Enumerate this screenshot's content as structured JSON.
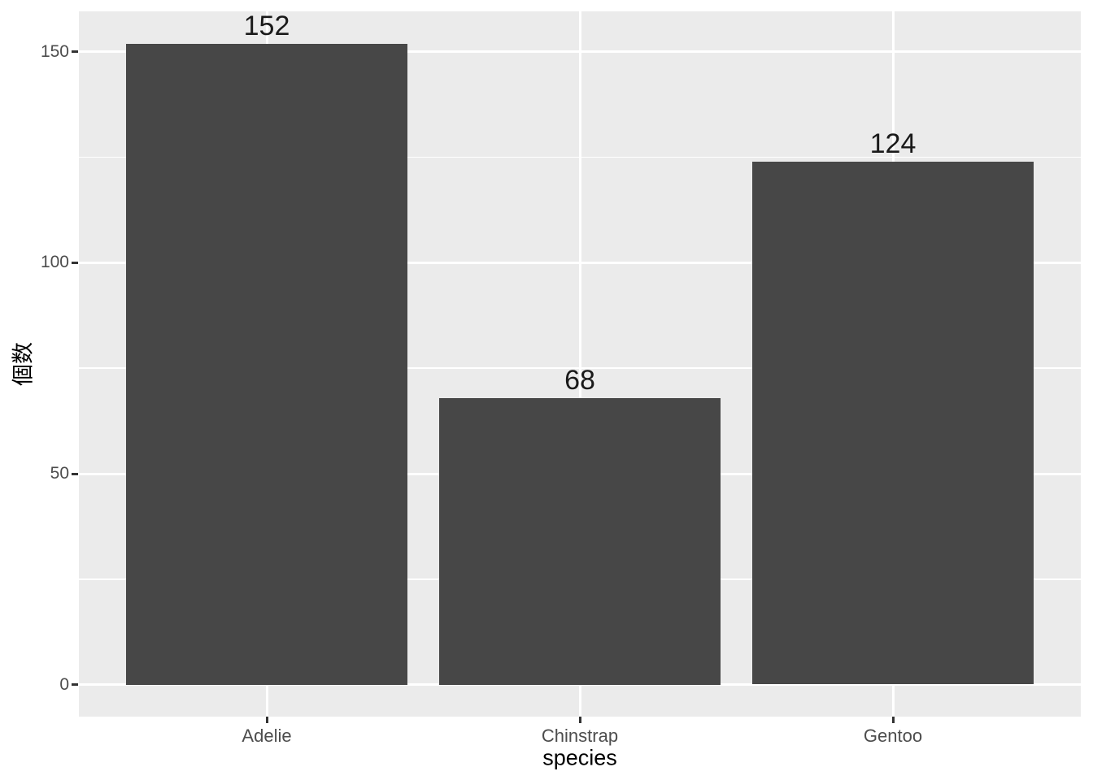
{
  "chart_data": {
    "type": "bar",
    "title": "",
    "categories": [
      "Adelie",
      "Chinstrap",
      "Gentoo"
    ],
    "values": [
      152,
      68,
      124
    ],
    "bar_labels": [
      "152",
      "68",
      "124"
    ],
    "xlabel": "species",
    "ylabel": "個数",
    "y_ticks": [
      0,
      50,
      100,
      150
    ],
    "y_tick_labels": [
      "0",
      "50",
      "100",
      "150"
    ],
    "ylim": [
      -8,
      160
    ],
    "bar_width_fraction": 0.9,
    "grid": true,
    "grid_minor": true,
    "legend": false,
    "bar_label_position": "above",
    "theme": "ggplot-grey"
  },
  "colors": {
    "figure_background": "#FFFFFF",
    "panel_background": "#EBEBEB",
    "bar_fill": "#474747",
    "gridline_major": "#FFFFFF",
    "gridline_minor": "#FFFFFF",
    "tick_label": "#4D4D4D",
    "axis_title": "#000000",
    "bar_label": "#1A1A1A",
    "tick_mark": "#333333"
  }
}
